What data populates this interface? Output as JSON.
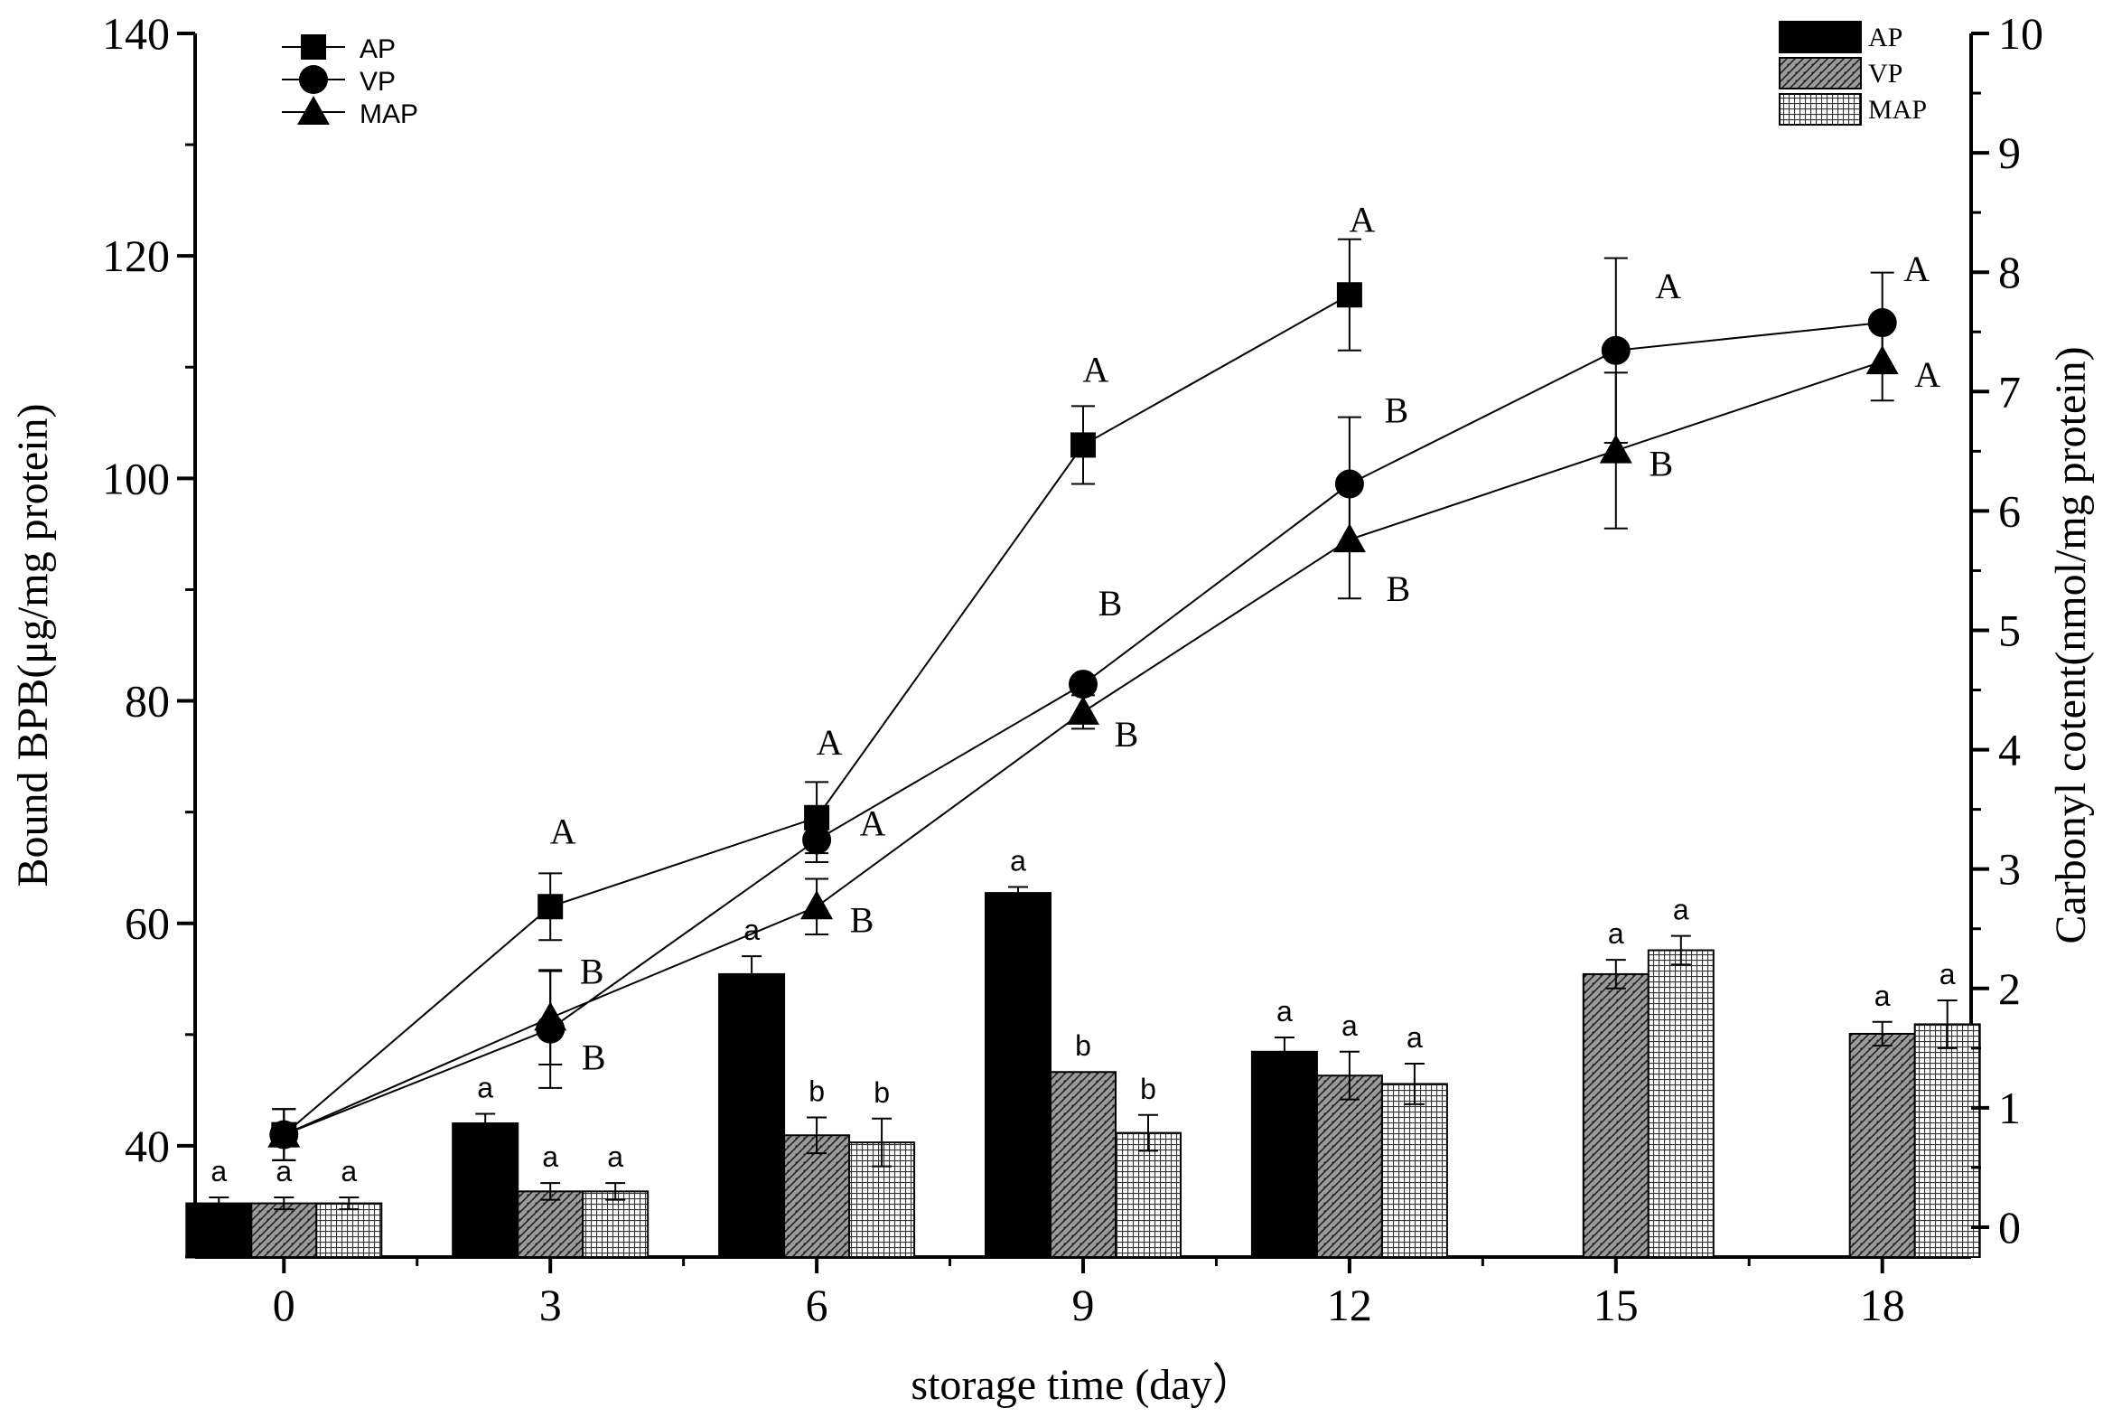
{
  "chart_data": {
    "type": "bar+line",
    "x_label": "storage time (day）",
    "y_left_label": "Bound BPB(μg/mg protein)",
    "y_right_label": "Carbonyl cotent(nmol/mg protein)",
    "x_ticks": [
      "0",
      "3",
      "6",
      "9",
      "12",
      "15",
      "18"
    ],
    "y_left_ticks": [
      "40",
      "60",
      "80",
      "100",
      "120",
      "140"
    ],
    "y_right_ticks": [
      "0",
      "1",
      "2",
      "3",
      "4",
      "5",
      "6",
      "7",
      "8",
      "9",
      "10"
    ],
    "x_range": [
      -1,
      19
    ],
    "y_left_range": [
      30,
      140
    ],
    "y_right_range": [
      -0.25,
      10
    ],
    "line_legend": [
      "AP",
      "VP",
      "MAP"
    ],
    "bar_legend": [
      "AP",
      "VP",
      "MAP"
    ],
    "line_series": [
      {
        "name": "AP",
        "marker": "square",
        "points": [
          {
            "day": 0,
            "value": 41.0,
            "err": 2.3,
            "label": ""
          },
          {
            "day": 3,
            "value": 61.5,
            "err": 3.0,
            "label": "A"
          },
          {
            "day": 6,
            "value": 69.5,
            "err": 3.2,
            "label": "A"
          },
          {
            "day": 9,
            "value": 103.0,
            "err": 3.5,
            "label": "A"
          },
          {
            "day": 12,
            "value": 116.5,
            "err": 5.0,
            "label": "A"
          }
        ]
      },
      {
        "name": "VP",
        "marker": "circle",
        "points": [
          {
            "day": 0,
            "value": 41.0,
            "err": 2.3,
            "label": ""
          },
          {
            "day": 3,
            "value": 50.5,
            "err": 5.3,
            "label": "B"
          },
          {
            "day": 6,
            "value": 67.5,
            "err": 2.0,
            "label": "A"
          },
          {
            "day": 9,
            "value": 81.5,
            "err": 0.6,
            "label": "B"
          },
          {
            "day": 12,
            "value": 99.5,
            "err": 6.0,
            "label": "B"
          },
          {
            "day": 15,
            "value": 111.5,
            "err": 8.3,
            "label": "A"
          },
          {
            "day": 18,
            "value": 114.0,
            "err": 4.5,
            "label": "A"
          }
        ]
      },
      {
        "name": "MAP",
        "marker": "triangle",
        "points": [
          {
            "day": 0,
            "value": 41.0,
            "err": 2.3,
            "label": ""
          },
          {
            "day": 3,
            "value": 51.5,
            "err": 4.2,
            "label": "B"
          },
          {
            "day": 6,
            "value": 61.5,
            "err": 2.5,
            "label": "B"
          },
          {
            "day": 9,
            "value": 79.0,
            "err": 1.5,
            "label": "B"
          },
          {
            "day": 12,
            "value": 94.5,
            "err": 5.3,
            "label": "B"
          },
          {
            "day": 15,
            "value": 102.5,
            "err": 7.0,
            "label": "B"
          },
          {
            "day": 18,
            "value": 110.5,
            "err": 3.5,
            "label": "A"
          }
        ]
      }
    ],
    "bar_series": [
      {
        "name": "AP",
        "fill": "solid",
        "points": [
          {
            "day": 0,
            "value": 0.2,
            "err": 0.05,
            "label": "a"
          },
          {
            "day": 3,
            "value": 0.87,
            "err": 0.08,
            "label": "a"
          },
          {
            "day": 6,
            "value": 2.12,
            "err": 0.15,
            "label": "a"
          },
          {
            "day": 9,
            "value": 2.8,
            "err": 0.05,
            "label": "a"
          },
          {
            "day": 12,
            "value": 1.47,
            "err": 0.12,
            "label": "a"
          }
        ]
      },
      {
        "name": "VP",
        "fill": "diagonal",
        "points": [
          {
            "day": 0,
            "value": 0.2,
            "err": 0.05,
            "label": "a"
          },
          {
            "day": 3,
            "value": 0.3,
            "err": 0.07,
            "label": "a"
          },
          {
            "day": 6,
            "value": 0.77,
            "err": 0.15,
            "label": "b"
          },
          {
            "day": 9,
            "value": 1.3,
            "err": 0.0,
            "label": "b"
          },
          {
            "day": 12,
            "value": 1.27,
            "err": 0.2,
            "label": "a"
          },
          {
            "day": 15,
            "value": 2.12,
            "err": 0.12,
            "label": "a"
          },
          {
            "day": 18,
            "value": 1.62,
            "err": 0.1,
            "label": "a"
          }
        ]
      },
      {
        "name": "MAP",
        "fill": "grid",
        "points": [
          {
            "day": 0,
            "value": 0.2,
            "err": 0.05,
            "label": "a"
          },
          {
            "day": 3,
            "value": 0.3,
            "err": 0.07,
            "label": "a"
          },
          {
            "day": 6,
            "value": 0.71,
            "err": 0.2,
            "label": "b"
          },
          {
            "day": 9,
            "value": 0.79,
            "err": 0.15,
            "label": "b"
          },
          {
            "day": 12,
            "value": 1.2,
            "err": 0.17,
            "label": "a"
          },
          {
            "day": 15,
            "value": 2.32,
            "err": 0.12,
            "label": "a"
          },
          {
            "day": 18,
            "value": 1.7,
            "err": 0.2,
            "label": "a"
          }
        ]
      }
    ]
  }
}
